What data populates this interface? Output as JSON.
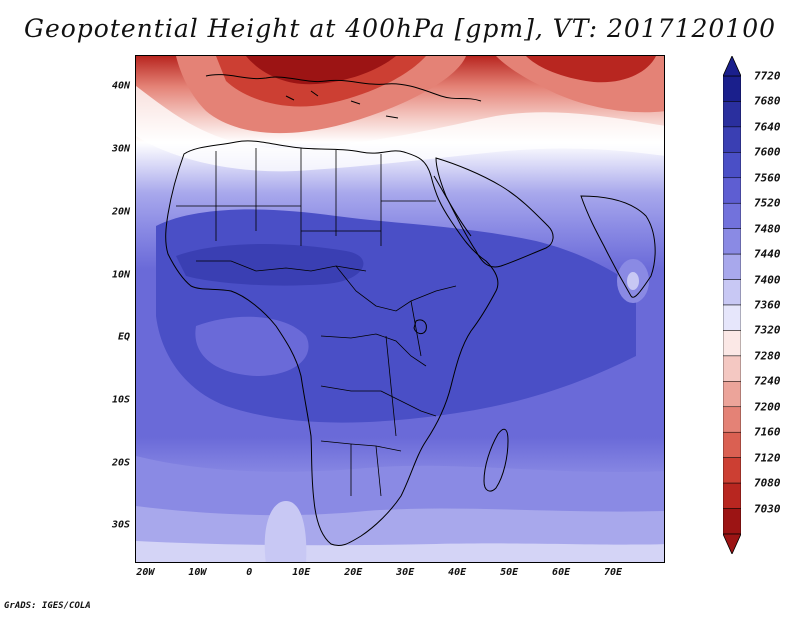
{
  "title": "Geopotential Height at 400hPa [gpm], VT: 2017120100",
  "credit": "GrADS: IGES/COLA",
  "lat_labels": [
    "40N",
    "30N",
    "20N",
    "10N",
    "EQ",
    "10S",
    "20S",
    "30S"
  ],
  "lon_labels": [
    "20W",
    "10W",
    "0",
    "10E",
    "20E",
    "30E",
    "40E",
    "50E",
    "60E",
    "70E"
  ],
  "colorbar": {
    "levels": [
      "7720",
      "7680",
      "7640",
      "7600",
      "7560",
      "7520",
      "7480",
      "7440",
      "7400",
      "7360",
      "7320",
      "7280",
      "7240",
      "7200",
      "7160",
      "7120",
      "7080",
      "7030"
    ],
    "colors": [
      "#1a1f8c",
      "#2a2f9e",
      "#3a3fb3",
      "#4a4fc6",
      "#5e5ed2",
      "#7272dc",
      "#8a8ae4",
      "#a8a8ec",
      "#c8c8f4",
      "#e6e6fb",
      "#fbe8e6",
      "#f4c8c2",
      "#eca49a",
      "#e48276",
      "#da6052",
      "#cc3f33",
      "#b82620",
      "#9c1414"
    ]
  },
  "map": {
    "region": "Africa",
    "lat_range": [
      -36,
      45
    ],
    "lon_range": [
      -22,
      80
    ],
    "colors": {
      "deep_blue": "#4a4fc6",
      "mid_blue": "#6a6ad8",
      "light_blue": "#a8a8ec",
      "pale_blue": "#d4d4f6",
      "white": "#ffffff",
      "light_red": "#f4c8c2",
      "mid_red": "#e48276",
      "deep_red": "#b82620"
    }
  }
}
